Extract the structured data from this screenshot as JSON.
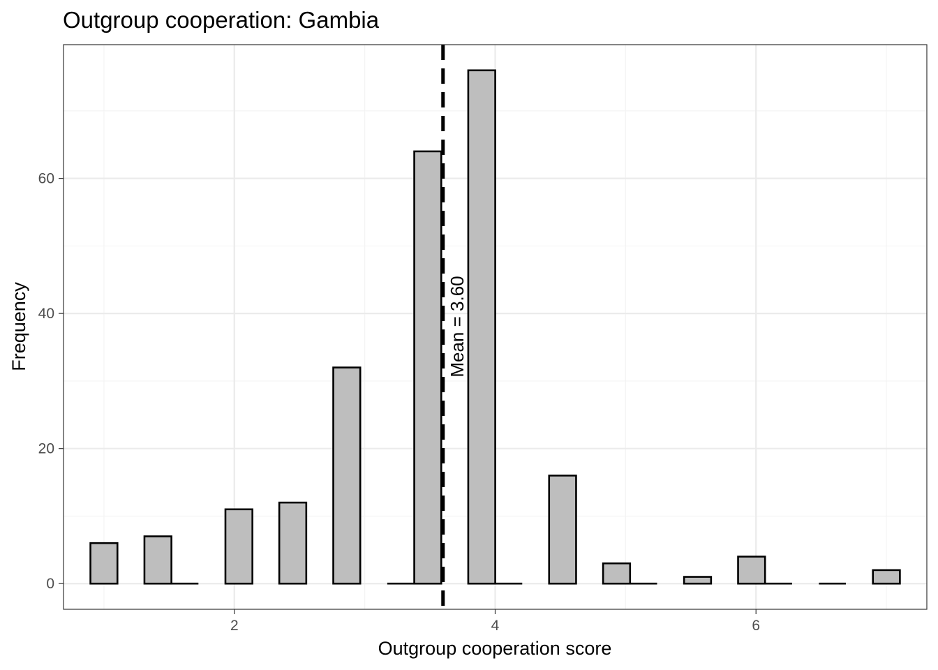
{
  "chart_data": {
    "type": "bar",
    "title": "Outgroup cooperation: Gambia",
    "xlabel": "Outgroup cooperation score",
    "ylabel": "Frequency",
    "xlim": [
      0.69,
      7.31
    ],
    "ylim": [
      -3.8,
      79.8
    ],
    "x_ticks": [
      2,
      4,
      6
    ],
    "y_ticks": [
      0,
      20,
      40,
      60
    ],
    "grid": true,
    "bin_width": 0.207,
    "bins": [
      {
        "x": 1.0,
        "count": 6
      },
      {
        "x": 1.414,
        "count": 7
      },
      {
        "x": 1.621,
        "count": 0
      },
      {
        "x": 2.035,
        "count": 11
      },
      {
        "x": 2.448,
        "count": 12
      },
      {
        "x": 2.862,
        "count": 32
      },
      {
        "x": 3.276,
        "count": 0
      },
      {
        "x": 3.483,
        "count": 64
      },
      {
        "x": 3.897,
        "count": 76
      },
      {
        "x": 4.104,
        "count": 0
      },
      {
        "x": 4.517,
        "count": 16
      },
      {
        "x": 4.931,
        "count": 3
      },
      {
        "x": 5.138,
        "count": 0
      },
      {
        "x": 5.552,
        "count": 1
      },
      {
        "x": 5.966,
        "count": 4
      },
      {
        "x": 6.173,
        "count": 0
      },
      {
        "x": 6.586,
        "count": 0
      },
      {
        "x": 7.0,
        "count": 2
      }
    ],
    "mean": 3.6,
    "mean_label": "Mean = 3.60",
    "colors": {
      "bar_fill": "#bebebe",
      "bar_stroke": "#000000",
      "grid_major": "#ebebeb",
      "grid_minor": "#f3f3f3",
      "panel_border": "#333333",
      "mean_line": "#000000"
    }
  }
}
